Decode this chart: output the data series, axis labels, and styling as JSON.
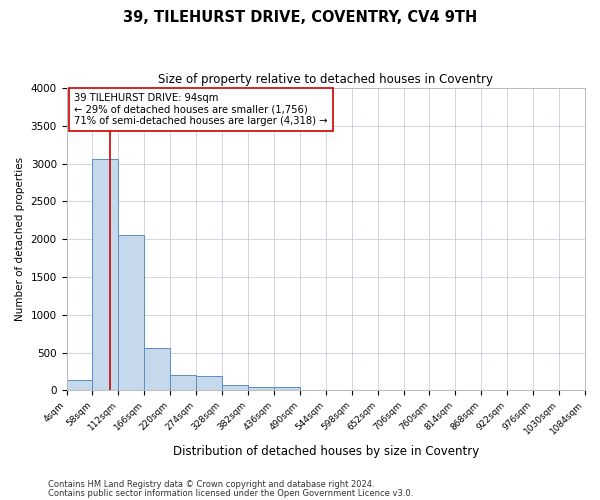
{
  "title": "39, TILEHURST DRIVE, COVENTRY, CV4 9TH",
  "subtitle": "Size of property relative to detached houses in Coventry",
  "xlabel": "Distribution of detached houses by size in Coventry",
  "ylabel": "Number of detached properties",
  "footer_line1": "Contains HM Land Registry data © Crown copyright and database right 2024.",
  "footer_line2": "Contains public sector information licensed under the Open Government Licence v3.0.",
  "annotation_line1": "39 TILEHURST DRIVE: 94sqm",
  "annotation_line2": "← 29% of detached houses are smaller (1,756)",
  "annotation_line3": "71% of semi-detached houses are larger (4,318) →",
  "property_size": 94,
  "bin_edges": [
    4,
    58,
    112,
    166,
    220,
    274,
    328,
    382,
    436,
    490,
    544,
    598,
    652,
    706,
    760,
    814,
    868,
    922,
    976,
    1030,
    1084
  ],
  "bar_heights": [
    130,
    3060,
    2060,
    560,
    200,
    195,
    70,
    50,
    38,
    0,
    0,
    0,
    0,
    0,
    0,
    0,
    0,
    0,
    0,
    0
  ],
  "bar_color": "#c5d8ec",
  "bar_edge_color": "#5b8ec4",
  "red_line_color": "#cc0000",
  "background_color": "#ffffff",
  "plot_bg_color": "#ffffff",
  "grid_color": "#c8d0dc",
  "annotation_box_color": "#ffffff",
  "annotation_box_edge": "#cc0000",
  "ylim": [
    0,
    4000
  ],
  "yticks": [
    0,
    500,
    1000,
    1500,
    2000,
    2500,
    3000,
    3500,
    4000
  ]
}
